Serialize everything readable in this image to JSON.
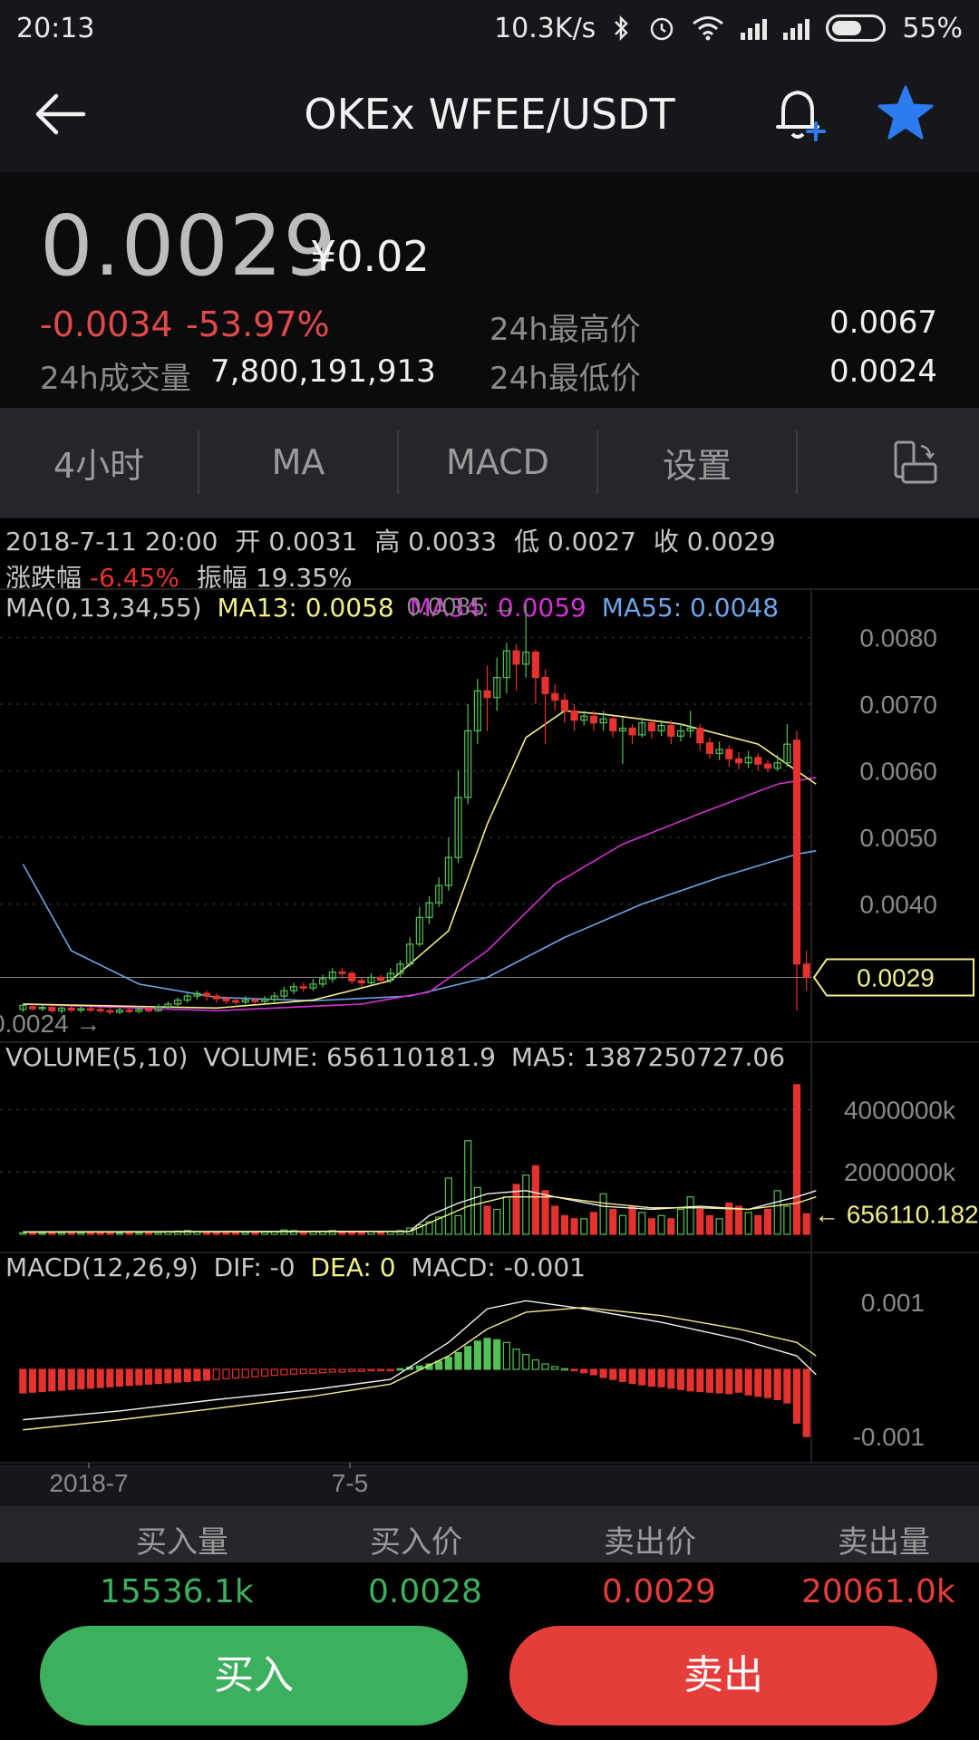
{
  "status_bar": {
    "time": "20:13",
    "speed": "10.3K/s",
    "battery": "55%",
    "icons": [
      "bluetooth-icon",
      "alarm-icon",
      "wifi-icon",
      "signal-icon",
      "signal-icon",
      "battery-icon"
    ]
  },
  "nav": {
    "title": "OKEx WFEE/USDT",
    "back_icon": "arrow-left-icon",
    "alert_icon": "bell-plus-icon",
    "favorite_icon": "star-icon",
    "favorite_color": "#2d7bf0"
  },
  "ticker": {
    "price": "0.0029",
    "cny": "¥0.02",
    "change": "-0.0034",
    "change_pct": "-53.97%",
    "volume_label": "24h成交量",
    "volume": "7,800,191,913",
    "high_label": "24h最高价",
    "high": "0.0067",
    "low_label": "24h最低价",
    "low": "0.0024"
  },
  "tabs": [
    {
      "label": "4小时"
    },
    {
      "label": "MA"
    },
    {
      "label": "MACD"
    },
    {
      "label": "设置"
    }
  ],
  "candle_info": {
    "date": "2018-7-11 20:00",
    "open_label": "开",
    "open": "0.0031",
    "high_label": "高",
    "high": "0.0033",
    "low_label": "低",
    "low": "0.0027",
    "close_label": "收",
    "close": "0.0029",
    "change_label": "涨跌幅",
    "change": "-6.45%",
    "amp_label": "振幅",
    "amp": "19.35%"
  },
  "ma_legend": {
    "title": "MA(0,13,34,55)",
    "ma13": "MA13: 0.0058",
    "ma34": "MA34: 0.0059",
    "ma55": "MA55: 0.0048"
  },
  "volume_legend": {
    "title": "VOLUME(5,10)",
    "volume": "VOLUME: 656110181.9",
    "ma5": "MA5: 1387250727.06"
  },
  "macd_legend": {
    "title": "MACD(12,26,9)",
    "dif": "DIF: -0",
    "dea": "DEA: 0",
    "macd": "MACD: -0.001"
  },
  "colors": {
    "up": "#54c254",
    "down": "#e5322f",
    "ma13": "#f2ef8a",
    "ma34": "#d431d4",
    "ma55": "#6ea6e8"
  },
  "chart_data": [
    {
      "type": "candlestick",
      "title": "",
      "y_ticks": [
        "0.0080",
        "0.0070",
        "0.0060",
        "0.0050",
        "0.0040"
      ],
      "ylim": [
        0.0022,
        0.0087
      ],
      "max_marker": "0.0085 →",
      "min_marker": "0.0024 →",
      "current_label": "0.0029",
      "x_ticks": [
        "2018-7",
        "7-5"
      ],
      "candles": [
        [
          0.00242,
          0.00248,
          0.00238,
          0.0025
        ],
        [
          0.00246,
          0.00243,
          0.0024,
          0.00249
        ],
        [
          0.00243,
          0.00245,
          0.00239,
          0.00248
        ],
        [
          0.00245,
          0.0024,
          0.00237,
          0.00247
        ],
        [
          0.0024,
          0.00244,
          0.00236,
          0.00246
        ],
        [
          0.00244,
          0.00241,
          0.00238,
          0.00247
        ],
        [
          0.00241,
          0.00243,
          0.00237,
          0.00246
        ],
        [
          0.00243,
          0.00242,
          0.00238,
          0.00246
        ],
        [
          0.00242,
          0.0024,
          0.00236,
          0.00245
        ],
        [
          0.0024,
          0.00238,
          0.00234,
          0.00244
        ],
        [
          0.00238,
          0.00241,
          0.00235,
          0.00244
        ],
        [
          0.00241,
          0.00239,
          0.00236,
          0.00245
        ],
        [
          0.00239,
          0.00242,
          0.00236,
          0.00247
        ],
        [
          0.00242,
          0.0024,
          0.00237,
          0.00246
        ],
        [
          0.0024,
          0.00246,
          0.00238,
          0.0025
        ],
        [
          0.00246,
          0.0025,
          0.00243,
          0.00254
        ],
        [
          0.0025,
          0.00256,
          0.00247,
          0.0026
        ],
        [
          0.00256,
          0.00262,
          0.00252,
          0.00266
        ],
        [
          0.00262,
          0.00266,
          0.00257,
          0.0027
        ],
        [
          0.00266,
          0.00262,
          0.00255,
          0.0027
        ],
        [
          0.00262,
          0.00258,
          0.00252,
          0.00266
        ],
        [
          0.00258,
          0.00255,
          0.0025,
          0.00262
        ],
        [
          0.00255,
          0.00253,
          0.00249,
          0.0026
        ],
        [
          0.00253,
          0.00256,
          0.0025,
          0.00262
        ],
        [
          0.00256,
          0.00254,
          0.0025,
          0.0026
        ],
        [
          0.00254,
          0.00257,
          0.00251,
          0.00262
        ],
        [
          0.00257,
          0.00262,
          0.00253,
          0.00268
        ],
        [
          0.00262,
          0.0027,
          0.00258,
          0.00276
        ],
        [
          0.0027,
          0.00276,
          0.00265,
          0.00282
        ],
        [
          0.00276,
          0.00274,
          0.00268,
          0.00282
        ],
        [
          0.00274,
          0.0028,
          0.0027,
          0.00288
        ],
        [
          0.0028,
          0.00288,
          0.00275,
          0.00294
        ],
        [
          0.00288,
          0.00298,
          0.00282,
          0.00304
        ],
        [
          0.00298,
          0.00296,
          0.00288,
          0.00304
        ],
        [
          0.00296,
          0.00285,
          0.0028,
          0.003
        ],
        [
          0.00285,
          0.00282,
          0.00276,
          0.0029
        ],
        [
          0.00282,
          0.0029,
          0.00278,
          0.00296
        ],
        [
          0.0029,
          0.00286,
          0.0028,
          0.00294
        ],
        [
          0.00286,
          0.00296,
          0.00282,
          0.00304
        ],
        [
          0.00296,
          0.0031,
          0.0029,
          0.00316
        ],
        [
          0.0031,
          0.0034,
          0.00306,
          0.0035
        ],
        [
          0.0034,
          0.0038,
          0.00336,
          0.00396
        ],
        [
          0.0038,
          0.00402,
          0.0037,
          0.00412
        ],
        [
          0.00402,
          0.00428,
          0.00396,
          0.0044
        ],
        [
          0.00428,
          0.0047,
          0.0042,
          0.005
        ],
        [
          0.0047,
          0.0056,
          0.00462,
          0.006
        ],
        [
          0.0056,
          0.0066,
          0.0055,
          0.007
        ],
        [
          0.0066,
          0.0072,
          0.0064,
          0.00738
        ],
        [
          0.0072,
          0.0071,
          0.0066,
          0.00758
        ],
        [
          0.0071,
          0.0074,
          0.0069,
          0.0077
        ],
        [
          0.0074,
          0.0078,
          0.00716,
          0.00792
        ],
        [
          0.0078,
          0.0076,
          0.0072,
          0.0079
        ],
        [
          0.0076,
          0.00778,
          0.0074,
          0.0085
        ],
        [
          0.00778,
          0.0074,
          0.007,
          0.00782
        ],
        [
          0.0074,
          0.00716,
          0.0064,
          0.00752
        ],
        [
          0.00716,
          0.00706,
          0.0069,
          0.0073
        ],
        [
          0.00706,
          0.0069,
          0.00672,
          0.00716
        ],
        [
          0.0069,
          0.00676,
          0.0066,
          0.007
        ],
        [
          0.00676,
          0.00682,
          0.00668,
          0.0069
        ],
        [
          0.00682,
          0.00672,
          0.0066,
          0.0069
        ],
        [
          0.00672,
          0.00678,
          0.0066,
          0.0069
        ],
        [
          0.00678,
          0.0066,
          0.0065,
          0.00682
        ],
        [
          0.0066,
          0.00664,
          0.0061,
          0.0068
        ],
        [
          0.00664,
          0.00654,
          0.0064,
          0.0067
        ],
        [
          0.00654,
          0.00672,
          0.0065,
          0.0068
        ],
        [
          0.00672,
          0.0066,
          0.00648,
          0.00676
        ],
        [
          0.0066,
          0.00668,
          0.00652,
          0.00676
        ],
        [
          0.00668,
          0.00652,
          0.0064,
          0.00676
        ],
        [
          0.00652,
          0.0066,
          0.00644,
          0.00672
        ],
        [
          0.0066,
          0.00664,
          0.0065,
          0.0069
        ],
        [
          0.00664,
          0.00642,
          0.0063,
          0.0067
        ],
        [
          0.00642,
          0.00626,
          0.00618,
          0.0065
        ],
        [
          0.00626,
          0.00632,
          0.00616,
          0.00644
        ],
        [
          0.00632,
          0.00618,
          0.00606,
          0.00638
        ],
        [
          0.00618,
          0.00612,
          0.00602,
          0.00628
        ],
        [
          0.00612,
          0.0062,
          0.00604,
          0.0063
        ],
        [
          0.0062,
          0.0061,
          0.006,
          0.00626
        ],
        [
          0.0061,
          0.00604,
          0.00598,
          0.00616
        ],
        [
          0.00604,
          0.00612,
          0.006,
          0.00624
        ],
        [
          0.00612,
          0.0064,
          0.00606,
          0.0067
        ],
        [
          0.00646,
          0.0031,
          0.0024,
          0.0066
        ],
        [
          0.0031,
          0.0029,
          0.0027,
          0.0033
        ]
      ],
      "ma13": {
        "name": "MA13",
        "start": 0.0025,
        "path": [
          [
            0,
            0.0025
          ],
          [
            20,
            0.00244
          ],
          [
            30,
            0.00256
          ],
          [
            38,
            0.00285
          ],
          [
            44,
            0.0036
          ],
          [
            48,
            0.0052
          ],
          [
            52,
            0.0065
          ],
          [
            56,
            0.0069
          ],
          [
            60,
            0.00685
          ],
          [
            68,
            0.0067
          ],
          [
            76,
            0.0064
          ],
          [
            80,
            0.006
          ],
          [
            82,
            0.0058
          ]
        ]
      },
      "ma34": {
        "name": "MA34",
        "path": [
          [
            0,
            0.0025
          ],
          [
            20,
            0.0024
          ],
          [
            35,
            0.0025
          ],
          [
            42,
            0.00268
          ],
          [
            48,
            0.0033
          ],
          [
            55,
            0.0043
          ],
          [
            62,
            0.0049
          ],
          [
            70,
            0.00536
          ],
          [
            78,
            0.0058
          ],
          [
            82,
            0.0059
          ]
        ]
      },
      "ma55": {
        "name": "MA55",
        "path": [
          [
            0,
            0.0046
          ],
          [
            5,
            0.0033
          ],
          [
            12,
            0.0028
          ],
          [
            20,
            0.0026
          ],
          [
            30,
            0.00255
          ],
          [
            40,
            0.00262
          ],
          [
            48,
            0.0029
          ],
          [
            56,
            0.0035
          ],
          [
            64,
            0.004
          ],
          [
            72,
            0.0044
          ],
          [
            80,
            0.00475
          ],
          [
            82,
            0.0048
          ]
        ]
      }
    },
    {
      "type": "bar",
      "title": "",
      "y_ticks": [
        "4000000k",
        "2000000k"
      ],
      "ylim": [
        0,
        5000000000
      ],
      "current_label": "656110.182",
      "values": [
        0.05,
        0.05,
        0.04,
        0.05,
        0.05,
        0.04,
        0.05,
        0.05,
        0.06,
        0.05,
        0.04,
        0.05,
        0.05,
        0.06,
        0.06,
        0.08,
        0.1,
        0.12,
        0.08,
        0.07,
        0.06,
        0.05,
        0.05,
        0.06,
        0.06,
        0.07,
        0.09,
        0.14,
        0.12,
        0.1,
        0.09,
        0.1,
        0.12,
        0.1,
        0.08,
        0.07,
        0.09,
        0.08,
        0.1,
        0.12,
        0.2,
        0.3,
        0.4,
        0.55,
        1.8,
        0.6,
        3.0,
        1.5,
        0.9,
        0.8,
        1.2,
        1.6,
        1.9,
        2.2,
        1.4,
        0.9,
        0.6,
        0.5,
        0.5,
        0.7,
        1.3,
        0.8,
        0.6,
        0.9,
        0.7,
        0.5,
        0.6,
        0.5,
        0.8,
        1.2,
        0.8,
        0.6,
        0.5,
        1.0,
        0.9,
        0.7,
        0.6,
        0.8,
        1.4,
        0.9,
        4.8,
        0.66
      ],
      "ma5_path": [
        [
          0,
          0.08
        ],
        [
          40,
          0.1
        ],
        [
          42,
          0.6
        ],
        [
          45,
          1.0
        ],
        [
          48,
          1.3
        ],
        [
          52,
          1.4
        ],
        [
          55,
          1.2
        ],
        [
          60,
          0.9
        ],
        [
          65,
          0.8
        ],
        [
          70,
          0.9
        ],
        [
          75,
          0.8
        ],
        [
          80,
          1.2
        ],
        [
          82,
          1.4
        ]
      ],
      "ma10_path": [
        [
          0,
          0.07
        ],
        [
          40,
          0.09
        ],
        [
          43,
          0.5
        ],
        [
          46,
          0.9
        ],
        [
          50,
          1.2
        ],
        [
          55,
          1.2
        ],
        [
          60,
          1.0
        ],
        [
          65,
          0.85
        ],
        [
          70,
          0.85
        ],
        [
          75,
          0.8
        ],
        [
          80,
          1.0
        ],
        [
          82,
          1.2
        ]
      ]
    },
    {
      "type": "bar",
      "title": "",
      "y_ticks": [
        "0.001",
        "-0.001"
      ],
      "ylim": [
        -0.0012,
        0.0012
      ],
      "values": [
        -0.00035,
        -0.00034,
        -0.00033,
        -0.00032,
        -0.00031,
        -0.0003,
        -0.00029,
        -0.00028,
        -0.00027,
        -0.00026,
        -0.00025,
        -0.00024,
        -0.00023,
        -0.00022,
        -0.00021,
        -0.0002,
        -0.00019,
        -0.00018,
        -0.00017,
        -0.00016,
        -0.00015,
        -0.00014,
        -0.00013,
        -0.00012,
        -0.00011,
        -0.0001,
        -9e-05,
        -8e-05,
        -7e-05,
        -6e-05,
        -6e-05,
        -5e-05,
        -4e-05,
        -4e-05,
        -3e-05,
        -3e-05,
        -2e-05,
        -2e-05,
        -1e-05,
        1e-05,
        3e-05,
        5e-05,
        8e-05,
        0.00012,
        0.00018,
        0.00025,
        0.00034,
        0.00042,
        0.00046,
        0.00044,
        0.0004,
        0.0003,
        0.00022,
        0.00014,
        8e-05,
        4e-05,
        1e-05,
        -2e-05,
        -5e-05,
        -8e-05,
        -0.00012,
        -0.00015,
        -0.00018,
        -0.00021,
        -0.00023,
        -0.00025,
        -0.00026,
        -0.00028,
        -0.0003,
        -0.00032,
        -0.00033,
        -0.00034,
        -0.00035,
        -0.00036,
        -0.00034,
        -0.00038,
        -0.0004,
        -0.00042,
        -0.00045,
        -0.0005,
        -0.0008,
        -0.001
      ],
      "dif_path": [
        [
          0,
          -0.00075
        ],
        [
          10,
          -0.00062
        ],
        [
          20,
          -0.00045
        ],
        [
          30,
          -0.0003
        ],
        [
          38,
          -0.00015
        ],
        [
          44,
          0.0004
        ],
        [
          48,
          0.0009
        ],
        [
          52,
          0.00102
        ],
        [
          58,
          0.0009
        ],
        [
          66,
          0.0007
        ],
        [
          74,
          0.00045
        ],
        [
          80,
          0.0002
        ],
        [
          82,
          -8e-05
        ]
      ],
      "dea_path": [
        [
          0,
          -0.0009
        ],
        [
          10,
          -0.00075
        ],
        [
          20,
          -0.00058
        ],
        [
          30,
          -0.0004
        ],
        [
          38,
          -0.00022
        ],
        [
          44,
          0.0002
        ],
        [
          48,
          0.0006
        ],
        [
          52,
          0.00085
        ],
        [
          58,
          0.00092
        ],
        [
          66,
          0.0008
        ],
        [
          74,
          0.0006
        ],
        [
          80,
          0.0004
        ],
        [
          82,
          0.0002
        ]
      ]
    }
  ],
  "order_book": {
    "headers": [
      "买入量",
      "买入价",
      "卖出价",
      "卖出量"
    ],
    "bid_volume": "15536.1k",
    "bid_price": "0.0028",
    "ask_price": "0.0029",
    "ask_volume": "20061.0k"
  },
  "actions": {
    "buy": "买入",
    "sell": "卖出"
  }
}
